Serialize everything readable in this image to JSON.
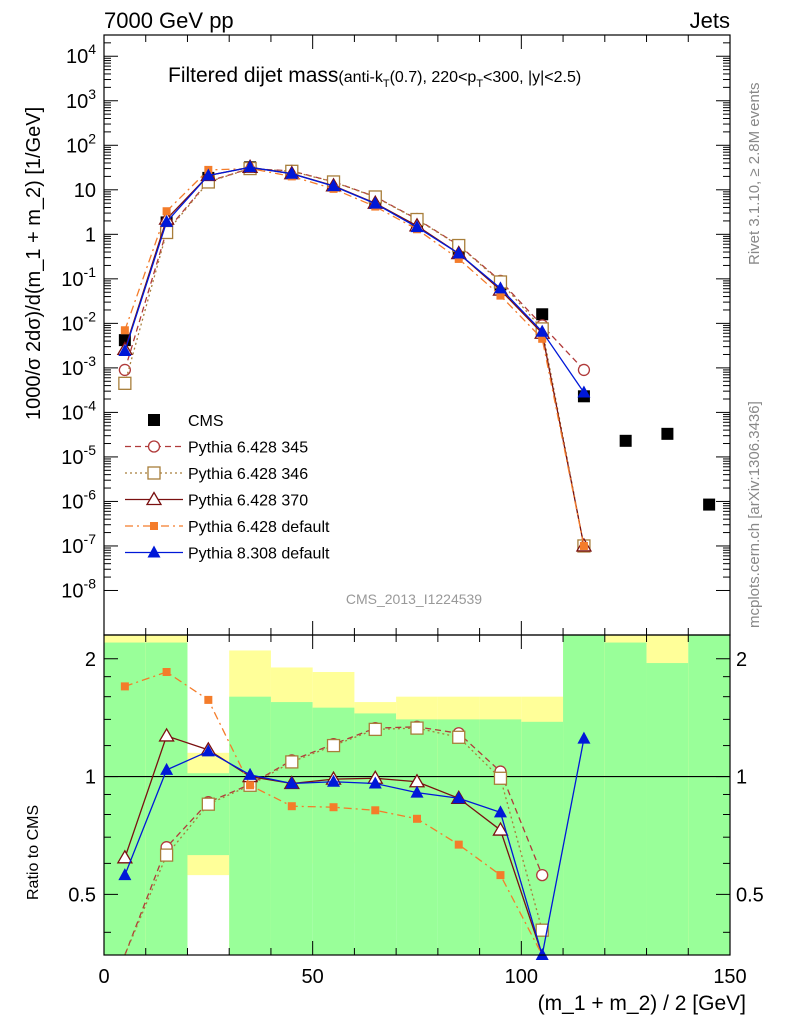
{
  "header": {
    "left": "7000 GeV pp",
    "right": "Jets"
  },
  "title": {
    "main": "Filtered dijet mass",
    "detail_prefix": "(anti-k",
    "detail_sub1": "T",
    "detail_mid": "(0.7), 220<p",
    "detail_sub2": "T",
    "detail_suffix": "<300, |y|<2.5)"
  },
  "side_texts": {
    "rivet": "Rivet 3.1.10, ≥ 2.8M events",
    "mcplots": "mcplots.cern.ch [arXiv:1306.3436]"
  },
  "watermark": "CMS_2013_I1224539",
  "colors": {
    "cms": "#000000",
    "p345": "#b03a3a",
    "p346": "#a87e3a",
    "p370": "#7a1010",
    "p6def": "#f47c2a",
    "p8def": "#0018d8",
    "band_yellow": "#ffff99",
    "band_green": "#99ff99"
  },
  "chart_data": [
    {
      "type": "scatter",
      "panel": "main",
      "ylabel": "1000/σ 2dσ)/d(m_1 + m_2) [1/GeV]",
      "xlim": [
        0,
        150
      ],
      "ylim": [
        1e-09,
        30000
      ],
      "yscale": "log",
      "yticks": [
        {
          "v": 1e-08,
          "m": "10",
          "e": "-8"
        },
        {
          "v": 1e-07,
          "m": "10",
          "e": "-7"
        },
        {
          "v": 1e-06,
          "m": "10",
          "e": "-6"
        },
        {
          "v": 1e-05,
          "m": "10",
          "e": "-5"
        },
        {
          "v": 0.0001,
          "m": "10",
          "e": "-4"
        },
        {
          "v": 0.001,
          "m": "10",
          "e": "-3"
        },
        {
          "v": 0.01,
          "m": "10",
          "e": "-2"
        },
        {
          "v": 0.1,
          "m": "10",
          "e": "-1"
        },
        {
          "v": 1,
          "m": "1",
          "e": ""
        },
        {
          "v": 10,
          "m": "10",
          "e": ""
        },
        {
          "v": 100,
          "m": "10",
          "e": "2"
        },
        {
          "v": 1000,
          "m": "10",
          "e": "3"
        },
        {
          "v": 10000,
          "m": "10",
          "e": "4"
        }
      ],
      "legend_position": "lower-left",
      "x": [
        5,
        15,
        25,
        35,
        45,
        55,
        65,
        75,
        85,
        95,
        105,
        115,
        125,
        135,
        145
      ],
      "series": [
        {
          "name": "CMS",
          "key": "cms",
          "marker": "square",
          "line": "none",
          "values": [
            0.0042,
            1.85,
            18.5,
            32,
            24,
            12.5,
            5.1,
            1.6,
            0.42,
            0.075,
            0.016,
            0.00023,
            2.3e-05,
            3.3e-05,
            8.5e-07
          ]
        },
        {
          "name": "Pythia 6.428 345",
          "key": "p345",
          "marker": "circle-open",
          "line": "dashed",
          "values": [
            0.0009,
            1.2,
            15.5,
            30,
            26.5,
            15.2,
            7.0,
            2.2,
            0.57,
            0.09,
            0.009,
            0.0009
          ]
        },
        {
          "name": "Pythia 6.428 346",
          "key": "p346",
          "marker": "square-open",
          "line": "dotted",
          "values": [
            0.00045,
            1.1,
            15.0,
            30,
            26,
            15.0,
            6.9,
            2.15,
            0.56,
            0.085,
            0.0075,
            1e-07
          ]
        },
        {
          "name": "Pythia 6.428 370",
          "key": "p370",
          "marker": "triangle-open",
          "line": "solid",
          "values": [
            0.0026,
            2.2,
            21.0,
            32,
            23.0,
            12.3,
            5.0,
            1.55,
            0.37,
            0.056,
            0.006,
            1e-07
          ]
        },
        {
          "name": "Pythia 6.428 default",
          "key": "p6def",
          "marker": "square-small",
          "line": "dashdot",
          "values": [
            0.007,
            3.3,
            28.0,
            30,
            20.0,
            10.5,
            4.2,
            1.3,
            0.28,
            0.042,
            0.0045,
            1e-07
          ]
        },
        {
          "name": "Pythia 8.308 default",
          "key": "p8def",
          "marker": "triangle",
          "line": "solid",
          "values": [
            0.0024,
            1.9,
            21.0,
            32,
            23.0,
            12.1,
            4.9,
            1.45,
            0.37,
            0.061,
            0.0065,
            0.00028
          ]
        }
      ]
    },
    {
      "type": "line",
      "panel": "ratio",
      "ylabel": "Ratio to CMS",
      "xlabel": "(m_1 + m_2) / 2 [GeV]",
      "xlim": [
        0,
        150
      ],
      "ylim": [
        0.35,
        2.3
      ],
      "yscale": "log",
      "yticks": [
        0.5,
        1,
        2
      ],
      "xticks": [
        0,
        50,
        100,
        150
      ],
      "reference_line": 1,
      "uncertainty_bands": [
        {
          "x": [
            0,
            10
          ],
          "yellow": [
            0.1,
            2.4
          ],
          "green": [
            0.1,
            2.2
          ]
        },
        {
          "x": [
            10,
            20
          ],
          "yellow": [
            0.1,
            2.4
          ],
          "green": [
            0.1,
            2.2
          ]
        },
        {
          "x": [
            20,
            30
          ],
          "yellow": [
            0.56,
            1.15
          ],
          "green": [
            0.63,
            1.02
          ]
        },
        {
          "x": [
            30,
            40
          ],
          "yellow": [
            0.1,
            2.1
          ],
          "green": [
            0.1,
            1.6
          ]
        },
        {
          "x": [
            40,
            50
          ],
          "yellow": [
            0.6,
            1.9
          ],
          "green": [
            0.1,
            1.55
          ]
        },
        {
          "x": [
            50,
            60
          ],
          "yellow": [
            0.6,
            1.85
          ],
          "green": [
            0.1,
            1.5
          ]
        },
        {
          "x": [
            60,
            70
          ],
          "yellow": [
            0.68,
            1.55
          ],
          "green": [
            0.1,
            1.45
          ]
        },
        {
          "x": [
            70,
            80
          ],
          "yellow": [
            0.68,
            1.6
          ],
          "green": [
            0.1,
            1.4
          ]
        },
        {
          "x": [
            80,
            90
          ],
          "yellow": [
            0.68,
            1.6
          ],
          "green": [
            0.1,
            1.4
          ]
        },
        {
          "x": [
            90,
            100
          ],
          "yellow": [
            0.1,
            1.6
          ],
          "green": [
            0.1,
            1.4
          ]
        },
        {
          "x": [
            100,
            110
          ],
          "yellow": [
            0.1,
            1.6
          ],
          "green": [
            0.1,
            1.38
          ]
        },
        {
          "x": [
            110,
            120
          ],
          "yellow": [
            0.1,
            2.4
          ],
          "green": [
            0.1,
            2.4
          ]
        },
        {
          "x": [
            120,
            130
          ],
          "yellow": [
            0.1,
            2.4
          ],
          "green": [
            0.1,
            2.2
          ]
        },
        {
          "x": [
            130,
            140
          ],
          "yellow": [
            0.1,
            2.4
          ],
          "green": [
            0.1,
            1.95
          ]
        },
        {
          "x": [
            140,
            150
          ],
          "yellow": [
            0.1,
            2.4
          ],
          "green": [
            0.1,
            2.4
          ]
        }
      ],
      "x": [
        5,
        15,
        25,
        35,
        45,
        55,
        65,
        75,
        85,
        95,
        105,
        115
      ],
      "series": [
        {
          "name": "Pythia 6.428 345",
          "key": "p345",
          "values": [
            0.2,
            0.66,
            0.86,
            0.955,
            1.1,
            1.21,
            1.33,
            1.34,
            1.29,
            1.03,
            0.56,
            null
          ]
        },
        {
          "name": "Pythia 6.428 346",
          "key": "p346",
          "values": [
            0.2,
            0.63,
            0.85,
            0.95,
            1.09,
            1.2,
            1.32,
            1.33,
            1.26,
            0.99,
            0.405,
            null
          ]
        },
        {
          "name": "Pythia 6.428 370",
          "key": "p370",
          "values": [
            0.62,
            1.27,
            1.17,
            1.0,
            0.96,
            0.985,
            0.99,
            0.97,
            0.88,
            0.73,
            0.3,
            null
          ]
        },
        {
          "name": "Pythia 6.428 default",
          "key": "p6def",
          "values": [
            1.7,
            1.85,
            1.57,
            0.95,
            0.84,
            0.835,
            0.82,
            0.78,
            0.67,
            0.56,
            0.3,
            null
          ]
        },
        {
          "name": "Pythia 8.308 default",
          "key": "p8def",
          "values": [
            0.56,
            1.04,
            1.16,
            1.01,
            0.96,
            0.97,
            0.96,
            0.91,
            0.88,
            0.81,
            0.35,
            1.25
          ]
        }
      ]
    }
  ]
}
